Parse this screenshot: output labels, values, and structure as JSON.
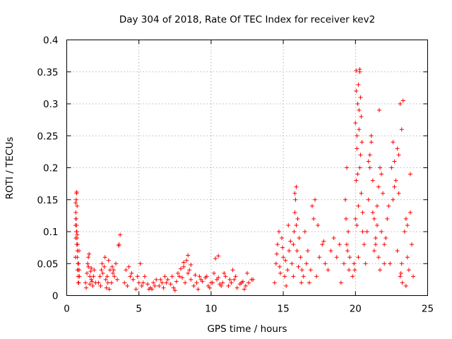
{
  "chart_data": {
    "type": "scatter",
    "title": "Day 304 of 2018, Rate Of TEC Index for receiver kev2",
    "xlabel": "GPS time / hours",
    "ylabel": "ROTI / TECUs",
    "xlim": [
      0,
      25
    ],
    "ylim": [
      0,
      0.4
    ],
    "x_ticks": [
      "0",
      "5",
      "10",
      "15",
      "20",
      "25"
    ],
    "y_ticks": [
      "0",
      "0.05",
      "0.1",
      "0.15",
      "0.2",
      "0.25",
      "0.3",
      "0.35",
      "0.4"
    ],
    "grid": true,
    "legend": "none",
    "marker": "+",
    "color": "#ff0000",
    "series": [
      {
        "x": [
          0.6,
          0.62,
          0.65,
          0.68,
          0.7,
          0.72,
          0.75,
          0.78,
          0.8,
          0.82,
          0.85,
          0.88,
          0.6,
          0.63,
          0.66,
          0.69,
          0.71,
          0.74,
          0.77,
          0.79,
          0.83,
          0.86,
          0.64,
          0.67,
          0.7,
          0.73,
          0.76,
          0.62,
          0.68,
          0.72,
          1.3,
          1.4,
          1.5,
          1.6,
          1.7,
          1.8,
          1.9,
          2.0,
          1.45,
          1.55,
          1.65,
          1.75,
          1.35,
          1.85,
          1.6,
          1.7,
          1.5,
          2.2,
          2.3,
          2.4,
          2.5,
          2.6,
          2.7,
          2.8,
          2.9,
          3.0,
          3.1,
          3.2,
          3.3,
          3.4,
          3.5,
          2.35,
          2.65,
          2.95,
          3.25,
          2.45,
          2.85,
          3.15,
          2.75,
          3.6,
          3.7,
          3.62,
          4.0,
          4.2,
          4.4,
          4.6,
          4.8,
          5.0,
          5.2,
          5.4,
          5.6,
          5.8,
          6.0,
          6.2,
          6.4,
          6.6,
          6.8,
          7.0,
          7.2,
          7.4,
          7.6,
          7.8,
          8.0,
          8.2,
          8.4,
          8.6,
          8.8,
          9.0,
          9.2,
          9.4,
          9.6,
          9.8,
          10.0,
          10.2,
          10.4,
          10.6,
          10.8,
          11.0,
          11.2,
          11.4,
          11.6,
          11.8,
          12.0,
          12.2,
          12.4,
          12.6,
          12.8,
          4.1,
          4.5,
          4.9,
          5.3,
          5.7,
          6.1,
          6.5,
          6.9,
          7.3,
          7.7,
          8.1,
          8.5,
          8.9,
          9.3,
          9.7,
          10.1,
          10.5,
          10.9,
          11.3,
          11.7,
          12.1,
          12.5,
          12.9,
          4.3,
          5.1,
          5.9,
          6.7,
          7.5,
          8.3,
          9.1,
          9.9,
          10.7,
          11.5,
          12.3,
          8.1,
          8.4,
          10.5,
          10.3,
          7.9,
          8.6,
          14.4,
          14.5,
          14.6,
          14.7,
          14.8,
          14.9,
          15.0,
          15.1,
          15.2,
          15.3,
          15.4,
          15.5,
          14.55,
          14.75,
          14.95,
          15.15,
          15.35,
          15.6,
          15.7,
          15.8,
          15.9,
          16.0,
          16.1,
          16.2,
          16.3,
          16.4,
          15.75,
          15.85,
          15.95,
          15.8,
          15.9,
          15.7,
          16.05,
          16.25,
          16.5,
          16.7,
          16.9,
          17.1,
          17.3,
          17.5,
          17.7,
          17.9,
          18.1,
          18.3,
          18.5,
          18.7,
          18.9,
          17.0,
          17.4,
          17.8,
          17.2,
          16.6,
          16.8,
          19.0,
          19.2,
          19.4,
          19.6,
          19.8,
          19.3,
          19.5,
          19.4,
          19.45,
          19.55,
          19.35,
          19.9,
          20.0,
          20.05,
          20.1,
          20.15,
          20.2,
          20.25,
          20.3,
          20.35,
          20.4,
          20.5,
          20.6,
          20.0,
          20.05,
          20.1,
          20.15,
          20.2,
          20.3,
          20.25,
          20.35,
          20.4,
          20.45,
          20.1,
          20.2,
          19.95,
          20.05,
          20.3,
          20.5,
          20.7,
          20.8,
          20.9,
          21.0,
          21.1,
          21.2,
          21.3,
          21.4,
          21.5,
          21.6,
          21.7,
          21.8,
          21.9,
          22.0,
          21.0,
          21.2,
          21.4,
          21.6,
          21.5,
          21.3,
          21.7,
          21.8,
          21.1,
          20.9,
          21.65,
          22.0,
          22.2,
          22.4,
          22.6,
          22.8,
          23.0,
          23.2,
          23.4,
          23.6,
          23.8,
          24.0,
          22.1,
          22.3,
          22.5,
          22.7,
          22.9,
          23.1,
          23.3,
          23.5,
          23.7,
          23.9,
          23.1,
          23.2,
          23.15,
          23.25,
          22.6,
          22.7,
          23.0,
          23.6,
          23.8,
          22.9,
          23.5
        ],
        "y": [
          0.06,
          0.09,
          0.12,
          0.16,
          0.1,
          0.14,
          0.08,
          0.04,
          0.02,
          0.05,
          0.07,
          0.03,
          0.11,
          0.13,
          0.15,
          0.162,
          0.09,
          0.07,
          0.05,
          0.03,
          0.02,
          0.04,
          0.12,
          0.1,
          0.08,
          0.06,
          0.04,
          0.145,
          0.11,
          0.095,
          0.02,
          0.035,
          0.045,
          0.03,
          0.025,
          0.015,
          0.04,
          0.02,
          0.05,
          0.065,
          0.038,
          0.022,
          0.012,
          0.03,
          0.018,
          0.043,
          0.06,
          0.02,
          0.03,
          0.04,
          0.035,
          0.045,
          0.025,
          0.03,
          0.055,
          0.04,
          0.02,
          0.035,
          0.03,
          0.05,
          0.025,
          0.015,
          0.06,
          0.01,
          0.04,
          0.05,
          0.02,
          0.045,
          0.012,
          0.078,
          0.095,
          0.08,
          0.02,
          0.015,
          0.03,
          0.025,
          0.01,
          0.02,
          0.015,
          0.03,
          0.018,
          0.012,
          0.02,
          0.025,
          0.015,
          0.02,
          0.03,
          0.025,
          0.018,
          0.012,
          0.022,
          0.03,
          0.028,
          0.02,
          0.035,
          0.025,
          0.015,
          0.02,
          0.03,
          0.022,
          0.028,
          0.015,
          0.02,
          0.035,
          0.025,
          0.018,
          0.02,
          0.03,
          0.015,
          0.02,
          0.025,
          0.012,
          0.018,
          0.022,
          0.015,
          0.02,
          0.025,
          0.04,
          0.035,
          0.03,
          0.02,
          0.01,
          0.015,
          0.025,
          0.02,
          0.03,
          0.035,
          0.045,
          0.04,
          0.032,
          0.025,
          0.03,
          0.02,
          0.028,
          0.035,
          0.025,
          0.03,
          0.02,
          0.035,
          0.025,
          0.045,
          0.05,
          0.01,
          0.012,
          0.008,
          0.055,
          0.01,
          0.012,
          0.015,
          0.04,
          0.01,
          0.052,
          0.063,
          0.062,
          0.058,
          0.042,
          0.048,
          0.02,
          0.05,
          0.08,
          0.1,
          0.035,
          0.09,
          0.06,
          0.03,
          0.015,
          0.04,
          0.07,
          0.085,
          0.065,
          0.045,
          0.075,
          0.055,
          0.11,
          0.05,
          0.08,
          0.13,
          0.17,
          0.12,
          0.09,
          0.06,
          0.04,
          0.03,
          0.1,
          0.15,
          0.07,
          0.16,
          0.11,
          0.03,
          0.045,
          0.02,
          0.1,
          0.07,
          0.04,
          0.12,
          0.03,
          0.06,
          0.08,
          0.05,
          0.04,
          0.07,
          0.09,
          0.06,
          0.08,
          0.14,
          0.11,
          0.085,
          0.15,
          0.05,
          0.02,
          0.02,
          0.05,
          0.08,
          0.06,
          0.03,
          0.15,
          0.1,
          0.2,
          0.07,
          0.04,
          0.12,
          0.05,
          0.12,
          0.18,
          0.25,
          0.3,
          0.33,
          0.29,
          0.35,
          0.22,
          0.16,
          0.1,
          0.08,
          0.27,
          0.32,
          0.23,
          0.19,
          0.14,
          0.2,
          0.26,
          0.31,
          0.28,
          0.24,
          0.11,
          0.06,
          0.04,
          0.352,
          0.354,
          0.13,
          0.05,
          0.1,
          0.15,
          0.2,
          0.24,
          0.18,
          0.12,
          0.08,
          0.14,
          0.06,
          0.2,
          0.1,
          0.16,
          0.05,
          0.22,
          0.13,
          0.09,
          0.17,
          0.11,
          0.07,
          0.04,
          0.19,
          0.25,
          0.21,
          0.29,
          0.08,
          0.12,
          0.05,
          0.15,
          0.18,
          0.22,
          0.26,
          0.1,
          0.06,
          0.13,
          0.03,
          0.09,
          0.14,
          0.2,
          0.17,
          0.07,
          0.3,
          0.305,
          0.12,
          0.04,
          0.08,
          0.03,
          0.05,
          0.035,
          0.02,
          0.24,
          0.21,
          0.16,
          0.11,
          0.19,
          0.23,
          0.015
        ]
      }
    ]
  }
}
